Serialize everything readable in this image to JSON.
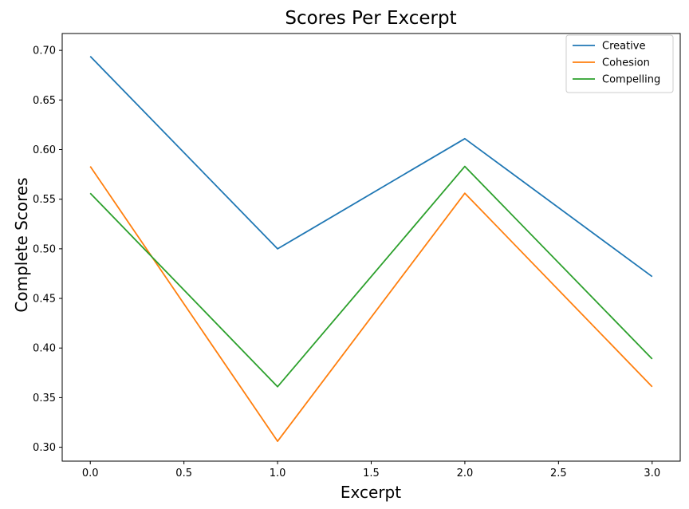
{
  "chart_data": {
    "type": "line",
    "title": "Scores Per Excerpt",
    "xlabel": "Excerpt",
    "ylabel": "Complete Scores",
    "x": [
      0,
      1,
      2,
      3
    ],
    "xlim": [
      -0.15,
      3.15
    ],
    "ylim": [
      0.286,
      0.717
    ],
    "xticks": [
      0.0,
      0.5,
      1.0,
      1.5,
      2.0,
      2.5,
      3.0
    ],
    "xtick_labels": [
      "0.0",
      "0.5",
      "1.0",
      "1.5",
      "2.0",
      "2.5",
      "3.0"
    ],
    "yticks": [
      0.3,
      0.35,
      0.4,
      0.45,
      0.5,
      0.55,
      0.6,
      0.65,
      0.7
    ],
    "ytick_labels": [
      "0.30",
      "0.35",
      "0.40",
      "0.45",
      "0.50",
      "0.55",
      "0.60",
      "0.65",
      "0.70"
    ],
    "grid": false,
    "legend_position": "top-right",
    "series": [
      {
        "name": "Creative",
        "color": "#1f77b4",
        "values": [
          0.694,
          0.5,
          0.611,
          0.472
        ]
      },
      {
        "name": "Cohesion",
        "color": "#ff7f0e",
        "values": [
          0.583,
          0.306,
          0.556,
          0.361
        ]
      },
      {
        "name": "Compelling",
        "color": "#2ca02c",
        "values": [
          0.556,
          0.361,
          0.583,
          0.389
        ]
      }
    ]
  }
}
